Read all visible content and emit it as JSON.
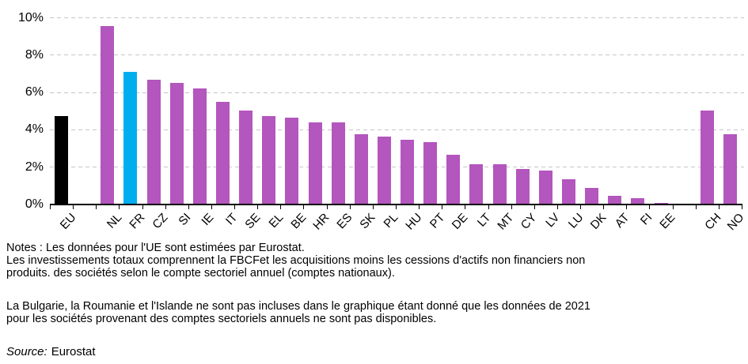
{
  "chart_data": {
    "type": "bar",
    "title": "",
    "xlabel": "",
    "ylabel": "",
    "ylim": [
      0,
      10
    ],
    "yticks": [
      0,
      2,
      4,
      6,
      8,
      10
    ],
    "ytick_labels": [
      "0%",
      "2%",
      "4%",
      "6%",
      "8%",
      "10%"
    ],
    "grid": "horizontal-dashed",
    "legend": "none",
    "colors": {
      "black": "#000000",
      "magenta": "#b356bd",
      "blue": "#00aeef"
    },
    "bars": [
      {
        "label": "EU",
        "value": 4.75,
        "color": "black"
      },
      {
        "label": "NL",
        "value": 9.55,
        "color": "magenta"
      },
      {
        "label": "FR",
        "value": 7.1,
        "color": "blue"
      },
      {
        "label": "CZ",
        "value": 6.7,
        "color": "magenta"
      },
      {
        "label": "SI",
        "value": 6.5,
        "color": "magenta"
      },
      {
        "label": "IE",
        "value": 6.2,
        "color": "magenta"
      },
      {
        "label": "IT",
        "value": 5.5,
        "color": "magenta"
      },
      {
        "label": "SE",
        "value": 5.05,
        "color": "magenta"
      },
      {
        "label": "EL",
        "value": 4.75,
        "color": "magenta"
      },
      {
        "label": "BE",
        "value": 4.65,
        "color": "magenta"
      },
      {
        "label": "HR",
        "value": 4.4,
        "color": "magenta"
      },
      {
        "label": "ES",
        "value": 4.4,
        "color": "magenta"
      },
      {
        "label": "SK",
        "value": 3.75,
        "color": "magenta"
      },
      {
        "label": "PL",
        "value": 3.65,
        "color": "magenta"
      },
      {
        "label": "HU",
        "value": 3.45,
        "color": "magenta"
      },
      {
        "label": "PT",
        "value": 3.35,
        "color": "magenta"
      },
      {
        "label": "DE",
        "value": 2.65,
        "color": "magenta"
      },
      {
        "label": "LT",
        "value": 2.15,
        "color": "magenta"
      },
      {
        "label": "MT",
        "value": 2.15,
        "color": "magenta"
      },
      {
        "label": "CY",
        "value": 1.9,
        "color": "magenta"
      },
      {
        "label": "LV",
        "value": 1.8,
        "color": "magenta"
      },
      {
        "label": "LU",
        "value": 1.35,
        "color": "magenta"
      },
      {
        "label": "DK",
        "value": 0.9,
        "color": "magenta"
      },
      {
        "label": "AT",
        "value": 0.45,
        "color": "magenta"
      },
      {
        "label": "FI",
        "value": 0.35,
        "color": "magenta"
      },
      {
        "label": "EE",
        "value": 0.07,
        "color": "magenta"
      },
      {
        "label": "CH",
        "value": 5.05,
        "color": "magenta"
      },
      {
        "label": "NO",
        "value": 3.75,
        "color": "magenta"
      }
    ],
    "gaps_after": [
      "EU",
      "EE"
    ]
  },
  "notes": {
    "para1_lines": [
      "Notes : Les données pour l'UE sont estimées par Eurostat.",
      "Les investissements totaux comprennent la FBCFet les acquisitions moins les cessions d'actifs non financiers non",
      "produits. des sociétés selon le compte sectoriel annuel (comptes nationaux)."
    ],
    "para2_lines": [
      "La Bulgarie, la Roumanie et l'Islande ne sont pas incluses dans le graphique étant donné que les données de 2021",
      "pour les sociétés provenant des comptes sectoriels annuels ne sont pas disponibles."
    ]
  },
  "source": {
    "label": "Source:",
    "value": "Eurostat"
  }
}
